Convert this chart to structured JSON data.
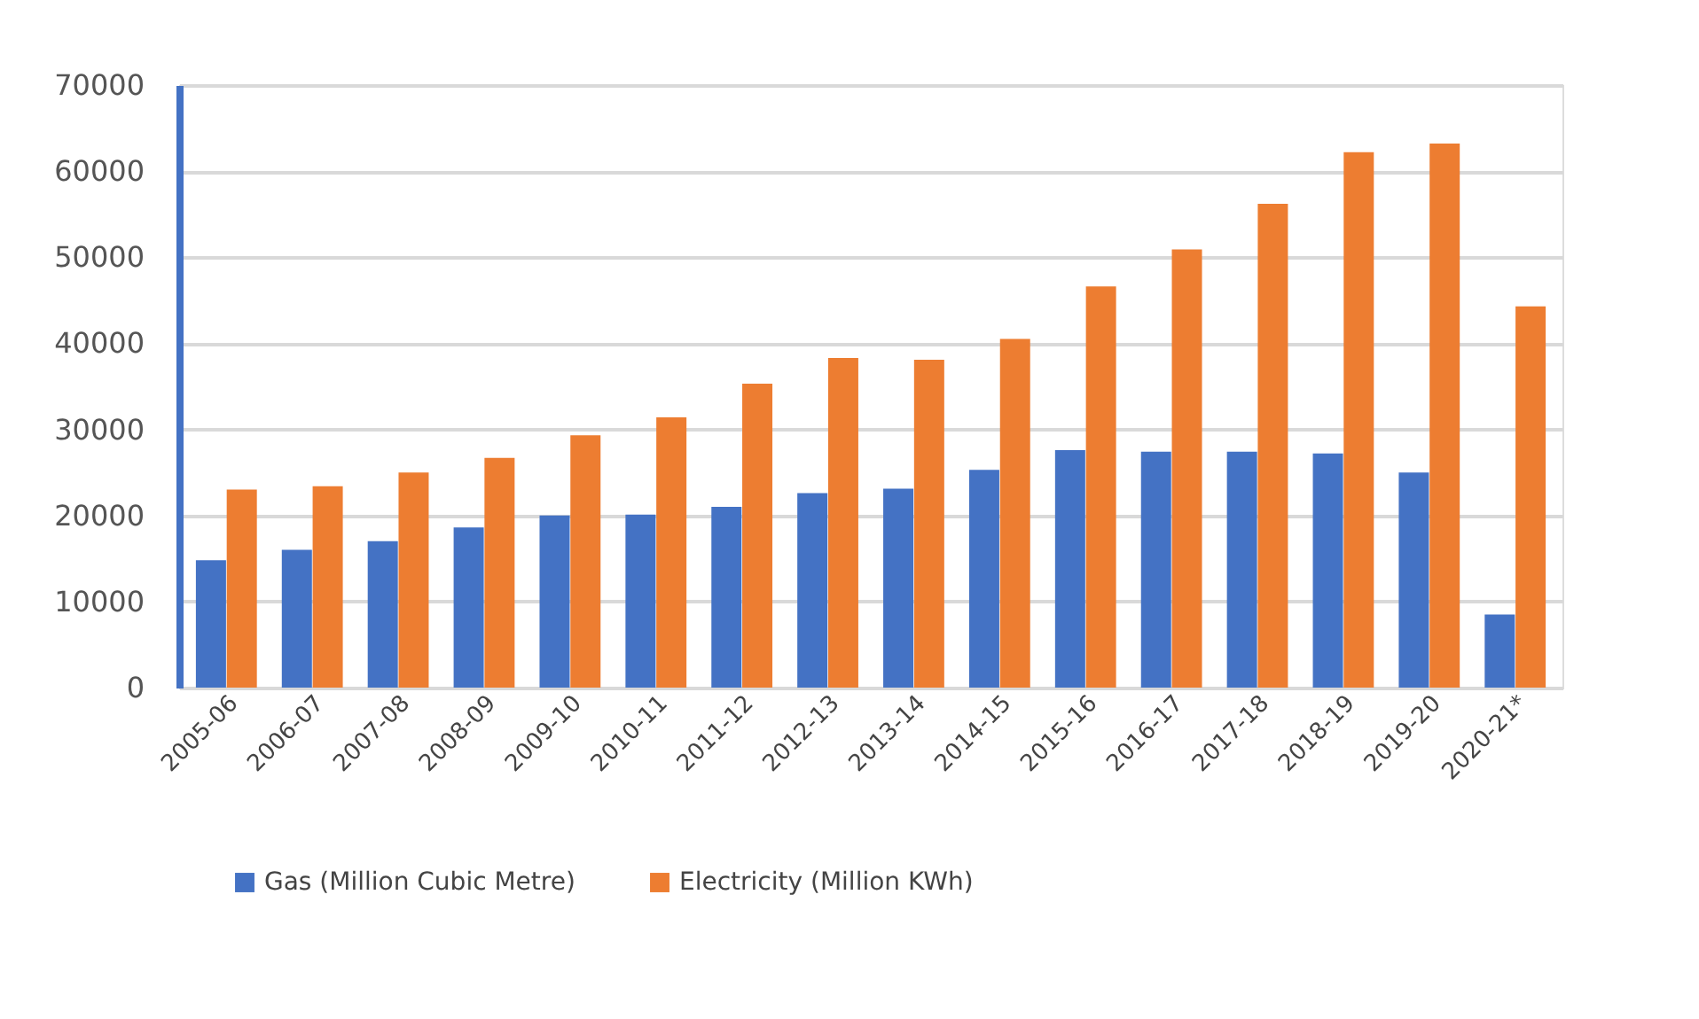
{
  "chart_data": {
    "type": "bar",
    "categories": [
      "2005-06",
      "2006-07",
      "2007-08",
      "2008-09",
      "2009-10",
      "2010-11",
      "2011-12",
      "2012-13",
      "2013-14",
      "2014-15",
      "2015-16",
      "2016-17",
      "2017-18",
      "2018-19",
      "2019-20",
      "2020-21*"
    ],
    "series": [
      {
        "name": "Gas (Million Cubic Metre)",
        "color": "#4472c4",
        "values": [
          14800,
          16000,
          17000,
          18600,
          20000,
          20100,
          21000,
          22600,
          23100,
          25300,
          27600,
          27400,
          27400,
          27200,
          25000,
          8500
        ]
      },
      {
        "name": "Electricity (Million KWh)",
        "color": "#ed7d31",
        "values": [
          23000,
          23400,
          25000,
          26700,
          29300,
          31400,
          35300,
          38300,
          38100,
          40500,
          46600,
          50900,
          56200,
          62200,
          63200,
          44300
        ]
      }
    ],
    "ylim": [
      0,
      70000
    ],
    "yticks": [
      0,
      10000,
      20000,
      30000,
      40000,
      50000,
      60000,
      70000
    ],
    "grid": "y",
    "legend": "bottom"
  }
}
